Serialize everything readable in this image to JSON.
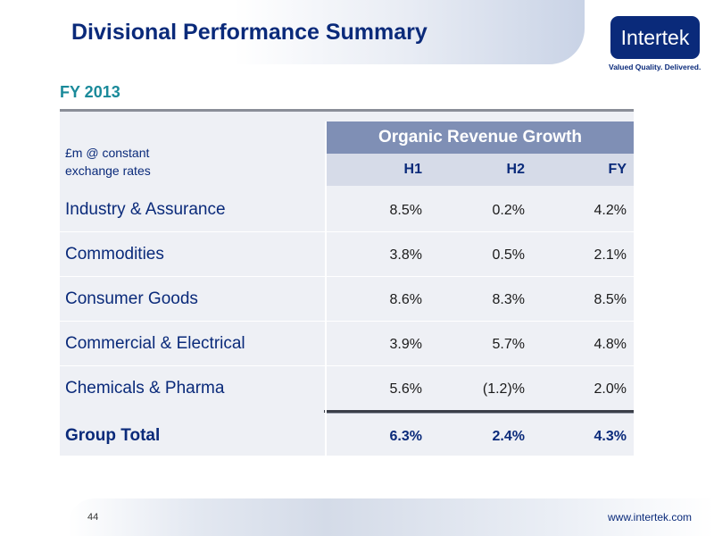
{
  "header": {
    "title": "Divisional Performance Summary",
    "logo_text": "Intertek",
    "tagline": "Valued Quality. Delivered."
  },
  "subtitle": "FY 2013",
  "table": {
    "unit_label_line1": "£m @ constant",
    "unit_label_line2": "exchange rates",
    "group_header": "Organic Revenue Growth",
    "columns": [
      "H1",
      "H2",
      "FY"
    ],
    "rows": [
      {
        "label": "Industry & Assurance",
        "h1": "8.5%",
        "h2": "0.2%",
        "fy": "4.2%"
      },
      {
        "label": "Commodities",
        "h1": "3.8%",
        "h2": "0.5%",
        "fy": "2.1%"
      },
      {
        "label": "Consumer Goods",
        "h1": "8.6%",
        "h2": "8.3%",
        "fy": "8.5%"
      },
      {
        "label": "Commercial & Electrical",
        "h1": "3.9%",
        "h2": "5.7%",
        "fy": "4.8%"
      },
      {
        "label": "Chemicals & Pharma",
        "h1": "5.6%",
        "h2": "(1.2)%",
        "fy": "2.0%"
      }
    ],
    "total": {
      "label": "Group Total",
      "h1": "6.3%",
      "h2": "2.4%",
      "fy": "4.3%"
    }
  },
  "footer": {
    "page_number": "44",
    "website": "www.intertek.com"
  },
  "colors": {
    "brand_navy": "#0a2a7a",
    "accent_teal": "#1a8a9a",
    "header_band": "#7f8fb5"
  }
}
